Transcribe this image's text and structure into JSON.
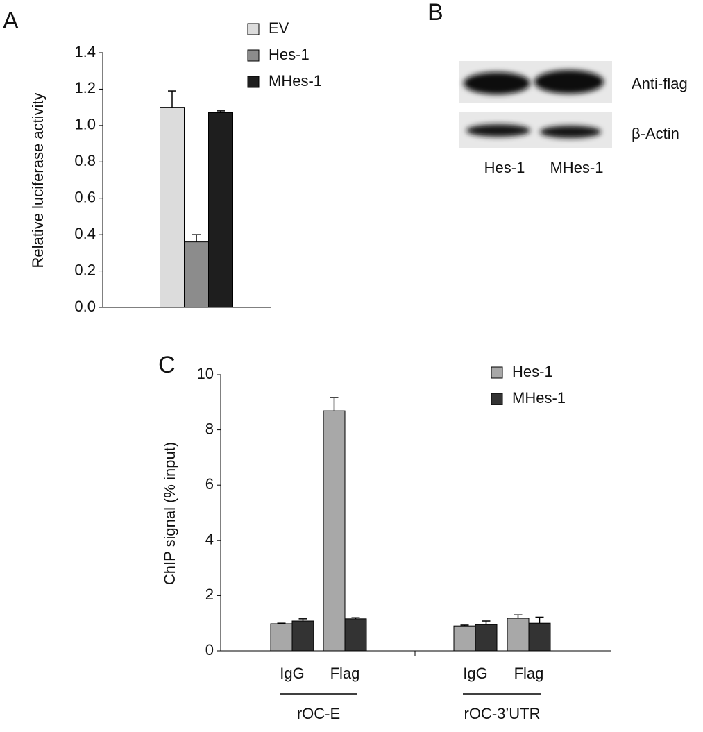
{
  "chart_data": [
    {
      "type": "bar",
      "panel_label": "A",
      "ylabel": "Relative luciferase activity",
      "categories": [
        null
      ],
      "series": [
        {
          "name": "EV",
          "color": "#dcdcdc",
          "values": [
            1.1
          ],
          "errors": [
            0.09
          ]
        },
        {
          "name": "Hes-1",
          "color": "#8c8c8c",
          "values": [
            0.36
          ],
          "errors": [
            0.04
          ]
        },
        {
          "name": "MHes-1",
          "color": "#1e1e1e",
          "values": [
            1.07
          ],
          "errors": [
            0.01
          ]
        }
      ],
      "ylim": [
        0,
        1.4
      ],
      "yticks": [
        {
          "value": 0,
          "label": "0.0"
        },
        0.2,
        0.4,
        0.6,
        0.8,
        {
          "value": 1,
          "label": "1.0"
        },
        1.2,
        1.4
      ]
    },
    {
      "type": "bar",
      "panel_label": "C",
      "ylabel": "ChIP signal (% input)",
      "categories": [
        "IgG",
        "Flag",
        "IgG",
        "Flag"
      ],
      "groups": [
        "rOC-E",
        "rOC-3’UTR"
      ],
      "series": [
        {
          "name": "Hes-1",
          "color": "#a8a8a8",
          "values": [
            0.98,
            8.69,
            0.9,
            1.18
          ],
          "errors": [
            0.02,
            0.48,
            0.03,
            0.12
          ]
        },
        {
          "name": "MHes-1",
          "color": "#333333",
          "values": [
            1.08,
            1.16,
            0.95,
            1.0
          ],
          "errors": [
            0.08,
            0.04,
            0.13,
            0.22
          ]
        }
      ],
      "ylim": [
        0,
        10
      ],
      "yticks": [
        0,
        2,
        4,
        6,
        8,
        10
      ]
    }
  ],
  "blot": {
    "panel_label": "B",
    "rows": [
      "Anti-flag",
      "β-Actin"
    ],
    "lanes": [
      "Hes-1",
      "MHes-1"
    ]
  }
}
